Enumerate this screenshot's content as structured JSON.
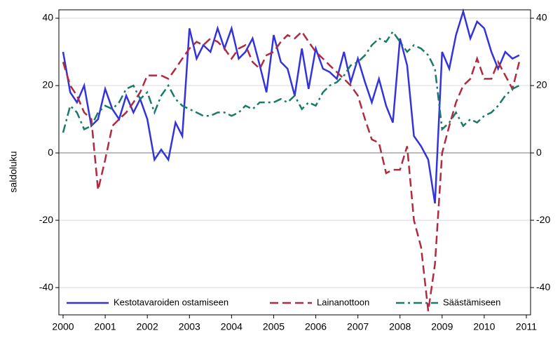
{
  "chart_data": {
    "type": "line",
    "ylabel": "saldoluku",
    "x": [
      2000,
      2000.17,
      2000.33,
      2000.5,
      2000.67,
      2000.83,
      2001,
      2001.17,
      2001.33,
      2001.5,
      2001.67,
      2001.83,
      2002,
      2002.17,
      2002.33,
      2002.5,
      2002.67,
      2002.83,
      2003,
      2003.17,
      2003.33,
      2003.5,
      2003.67,
      2003.83,
      2004,
      2004.17,
      2004.33,
      2004.5,
      2004.67,
      2004.83,
      2005,
      2005.17,
      2005.33,
      2005.5,
      2005.67,
      2005.83,
      2006,
      2006.17,
      2006.33,
      2006.5,
      2006.67,
      2006.83,
      2007,
      2007.17,
      2007.33,
      2007.5,
      2007.67,
      2007.83,
      2008,
      2008.17,
      2008.33,
      2008.5,
      2008.67,
      2008.83,
      2009,
      2009.17,
      2009.33,
      2009.5,
      2009.67,
      2009.83,
      2010,
      2010.17,
      2010.33,
      2010.5,
      2010.67,
      2010.83
    ],
    "series": [
      {
        "name": "Kestotavaroiden ostamiseen",
        "color": "#3333dd",
        "linestyle": "solid",
        "values": [
          30,
          18,
          15,
          20,
          8,
          10,
          19,
          13,
          10,
          17,
          12,
          16,
          10,
          -2,
          1,
          -2,
          9,
          5,
          37,
          28,
          32,
          30,
          37,
          31,
          37,
          28,
          30,
          34,
          26,
          18,
          35,
          27,
          25,
          17,
          31,
          19,
          31,
          25,
          24,
          22,
          30,
          21,
          28,
          21,
          15,
          22,
          14,
          9,
          34,
          26,
          5,
          2,
          -2,
          -15,
          30,
          25,
          35,
          42,
          34,
          39,
          37,
          30,
          25,
          30,
          28,
          29
        ]
      },
      {
        "name": "Lainanottoon",
        "color": "#b02a40",
        "linestyle": "dashed",
        "values": [
          27,
          20,
          17,
          12,
          10,
          -11,
          -2,
          8,
          10,
          12,
          15,
          18,
          23,
          23,
          23,
          22,
          25,
          28,
          31,
          33,
          32,
          34,
          33,
          31,
          28,
          31,
          32,
          27,
          25,
          29,
          30,
          33,
          35,
          34,
          36,
          33,
          30,
          28,
          26,
          24,
          22,
          20,
          17,
          10,
          4,
          3,
          -6,
          -5,
          -5,
          2,
          -20,
          -28,
          -47,
          -33,
          0,
          8,
          15,
          20,
          22,
          28,
          22,
          22,
          27,
          23,
          19,
          27
        ]
      },
      {
        "name": "Säästämiseen",
        "color": "#1a7a68",
        "linestyle": "dashdot",
        "values": [
          6,
          14,
          12,
          7,
          8,
          12,
          14,
          13,
          15,
          19,
          20,
          16,
          18,
          12,
          17,
          20,
          16,
          14,
          13,
          12,
          11,
          11,
          12,
          12,
          11,
          12,
          14,
          13,
          15,
          15,
          15,
          16,
          15,
          17,
          13,
          15,
          14,
          18,
          20,
          21,
          23,
          26,
          27,
          29,
          32,
          34,
          33,
          36,
          33,
          30,
          32,
          31,
          29,
          25,
          7,
          9,
          12,
          8,
          10,
          9,
          11,
          12,
          14,
          17,
          19,
          20
        ]
      }
    ],
    "xlim": [
      1999.9,
      2011.1
    ],
    "xticks": [
      2000,
      2001,
      2002,
      2003,
      2004,
      2005,
      2006,
      2007,
      2008,
      2009,
      2010,
      2011
    ],
    "ylim": [
      -48.1,
      42.5
    ],
    "yticks": [
      -40,
      -20,
      0,
      20,
      40
    ],
    "y2lim": [
      -48.1,
      42.5
    ],
    "y2ticks": [
      -40,
      -20,
      0,
      20,
      40
    ],
    "grid": true,
    "legend": "lower center"
  }
}
